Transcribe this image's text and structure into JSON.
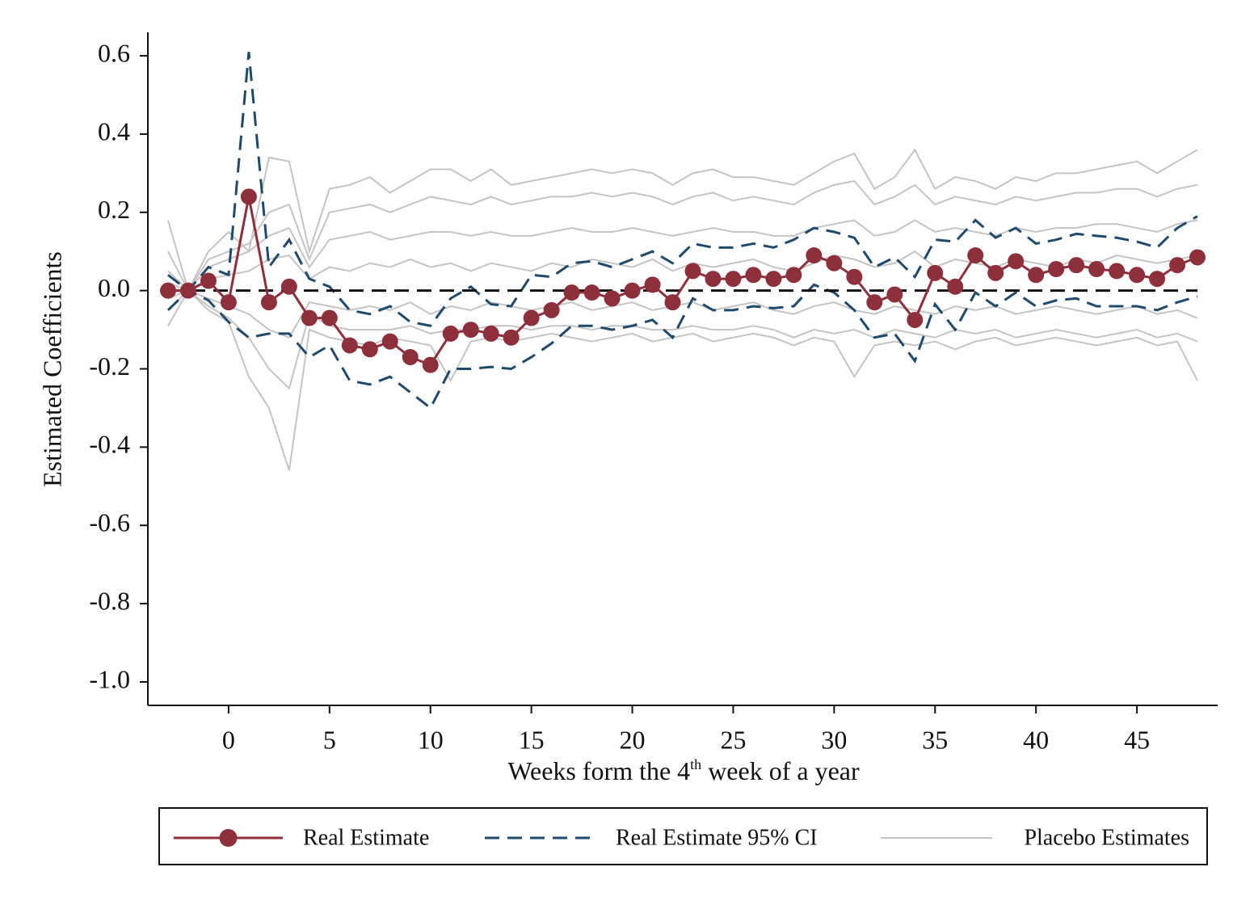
{
  "chart_data": {
    "type": "line",
    "ylabel": "Estimated Coefficients",
    "xlabel": [
      "Weeks form the 4",
      "th",
      " week of a year"
    ],
    "x": [
      -3,
      -2,
      -1,
      0,
      1,
      2,
      3,
      4,
      5,
      6,
      7,
      8,
      9,
      10,
      11,
      12,
      13,
      14,
      15,
      16,
      17,
      18,
      19,
      20,
      21,
      22,
      23,
      24,
      25,
      26,
      27,
      28,
      29,
      30,
      31,
      32,
      33,
      34,
      35,
      36,
      37,
      38,
      39,
      40,
      41,
      42,
      43,
      44,
      45,
      46,
      47,
      48
    ],
    "xlim": [
      -4,
      49
    ],
    "xticks": [
      0,
      5,
      10,
      15,
      20,
      25,
      30,
      35,
      40,
      45
    ],
    "ylim": [
      -1.06,
      0.66
    ],
    "yticks": [
      {
        "value": -1,
        "label": "-1.0"
      },
      -0.8,
      -0.6,
      -0.4,
      -0.2,
      {
        "value": 0,
        "label": "0.0"
      },
      0.2,
      0.4,
      0.6
    ],
    "reference_line": 0,
    "series": [
      {
        "name": "Real Estimate",
        "color": "#8e2f3c",
        "marker": true,
        "values": [
          0,
          0,
          0.025,
          -0.03,
          0.24,
          -0.03,
          0.01,
          -0.07,
          -0.07,
          -0.14,
          -0.15,
          -0.13,
          -0.17,
          -0.19,
          -0.11,
          -0.1,
          -0.11,
          -0.12,
          -0.07,
          -0.05,
          -0.005,
          -0.005,
          -0.02,
          0,
          0.015,
          -0.03,
          0.05,
          0.03,
          0.03,
          0.04,
          0.03,
          0.04,
          0.09,
          0.07,
          0.035,
          -0.03,
          -0.01,
          -0.075,
          0.045,
          0.01,
          0.09,
          0.045,
          0.075,
          0.04,
          0.055,
          0.065,
          0.055,
          0.05,
          0.04,
          0.03,
          0.065,
          0.085
        ]
      },
      {
        "name": "Real Estimate 95% CI",
        "color": "#1f4a6b",
        "dash": true,
        "upper": [
          0.04,
          0,
          0.06,
          0.04,
          0.61,
          0.06,
          0.13,
          0.03,
          0.01,
          -0.05,
          -0.06,
          -0.04,
          -0.08,
          -0.09,
          -0.02,
          0.01,
          -0.035,
          -0.04,
          0.04,
          0.035,
          0.07,
          0.075,
          0.06,
          0.08,
          0.1,
          0.07,
          0.12,
          0.11,
          0.11,
          0.12,
          0.11,
          0.13,
          0.16,
          0.15,
          0.135,
          0.06,
          0.085,
          0.035,
          0.13,
          0.125,
          0.18,
          0.135,
          0.16,
          0.12,
          0.13,
          0.145,
          0.14,
          0.135,
          0.125,
          0.11,
          0.16,
          0.19
        ],
        "lower": [
          -0.05,
          0,
          -0.025,
          -0.08,
          -0.12,
          -0.11,
          -0.11,
          -0.17,
          -0.14,
          -0.23,
          -0.24,
          -0.22,
          -0.26,
          -0.3,
          -0.2,
          -0.2,
          -0.195,
          -0.2,
          -0.17,
          -0.135,
          -0.09,
          -0.09,
          -0.1,
          -0.09,
          -0.075,
          -0.12,
          -0.02,
          -0.05,
          -0.05,
          -0.04,
          -0.045,
          -0.04,
          0.015,
          -0.005,
          -0.05,
          -0.12,
          -0.11,
          -0.18,
          -0.035,
          -0.1,
          -0.005,
          -0.04,
          -0.005,
          -0.04,
          -0.025,
          -0.02,
          -0.04,
          -0.04,
          -0.04,
          -0.05,
          -0.03,
          -0.015
        ]
      },
      {
        "name": "Placebo Estimates",
        "color": "#c4c4c4",
        "lines": [
          [
            0.18,
            0,
            0.1,
            0.15,
            0.1,
            0.34,
            0.33,
            0.1,
            0.26,
            0.27,
            0.29,
            0.25,
            0.28,
            0.31,
            0.31,
            0.28,
            0.31,
            0.27,
            0.28,
            0.29,
            0.3,
            0.31,
            0.3,
            0.31,
            0.3,
            0.27,
            0.3,
            0.31,
            0.29,
            0.29,
            0.28,
            0.27,
            0.3,
            0.33,
            0.35,
            0.26,
            0.29,
            0.36,
            0.26,
            0.29,
            0.28,
            0.26,
            0.29,
            0.28,
            0.3,
            0.3,
            0.31,
            0.32,
            0.33,
            0.3,
            0.33,
            0.36
          ],
          [
            0.1,
            0,
            0.08,
            0.1,
            0.12,
            0.2,
            0.22,
            0.08,
            0.2,
            0.21,
            0.22,
            0.2,
            0.22,
            0.24,
            0.23,
            0.22,
            0.24,
            0.22,
            0.23,
            0.24,
            0.24,
            0.25,
            0.24,
            0.25,
            0.24,
            0.22,
            0.24,
            0.25,
            0.23,
            0.24,
            0.23,
            0.22,
            0.25,
            0.27,
            0.28,
            0.22,
            0.24,
            0.27,
            0.22,
            0.24,
            0.23,
            0.22,
            0.24,
            0.23,
            0.24,
            0.25,
            0.25,
            0.26,
            0.26,
            0.24,
            0.26,
            0.27
          ],
          [
            0.05,
            0,
            0.06,
            0.08,
            0.1,
            0.14,
            0.16,
            0.06,
            0.13,
            0.14,
            0.15,
            0.13,
            0.14,
            0.15,
            0.15,
            0.14,
            0.15,
            0.14,
            0.14,
            0.15,
            0.16,
            0.15,
            0.15,
            0.16,
            0.15,
            0.14,
            0.15,
            0.16,
            0.15,
            0.15,
            0.14,
            0.14,
            0.16,
            0.17,
            0.18,
            0.14,
            0.15,
            0.18,
            0.15,
            0.16,
            0.15,
            0.14,
            0.16,
            0.15,
            0.16,
            0.16,
            0.17,
            0.17,
            0.16,
            0.15,
            0.17,
            0.18
          ],
          [
            0.02,
            0,
            0.03,
            0.04,
            0.05,
            0.08,
            0.09,
            0.03,
            0.06,
            0.05,
            0.07,
            0.06,
            0.08,
            0.06,
            0.07,
            0.05,
            0.07,
            0.06,
            0.05,
            0.07,
            0.06,
            0.08,
            0.07,
            0.06,
            0.08,
            0.05,
            0.07,
            0.06,
            0.07,
            0.08,
            0.06,
            0.05,
            0.07,
            0.09,
            0.08,
            0.06,
            0.07,
            0.1,
            0.06,
            0.08,
            0.07,
            0.06,
            0.08,
            0.07,
            0.06,
            0.08,
            0.07,
            0.09,
            0.08,
            0.07,
            0.08,
            0.09
          ],
          [
            -0.02,
            0,
            -0.02,
            -0.04,
            -0.06,
            -0.1,
            -0.12,
            -0.03,
            -0.04,
            -0.05,
            -0.04,
            -0.05,
            -0.03,
            -0.06,
            -0.04,
            -0.05,
            -0.03,
            -0.04,
            -0.05,
            -0.04,
            -0.03,
            -0.05,
            -0.04,
            -0.03,
            -0.05,
            -0.04,
            -0.03,
            -0.05,
            -0.04,
            -0.03,
            -0.05,
            -0.06,
            -0.04,
            -0.03,
            -0.05,
            -0.06,
            -0.04,
            -0.05,
            -0.06,
            -0.04,
            -0.05,
            -0.04,
            -0.06,
            -0.05,
            -0.04,
            -0.05,
            -0.06,
            -0.05,
            -0.04,
            -0.06,
            -0.05,
            -0.07
          ],
          [
            -0.05,
            0,
            -0.04,
            -0.07,
            -0.12,
            -0.2,
            -0.25,
            -0.06,
            -0.09,
            -0.1,
            -0.1,
            -0.1,
            -0.09,
            -0.11,
            -0.1,
            -0.1,
            -0.09,
            -0.09,
            -0.1,
            -0.09,
            -0.09,
            -0.1,
            -0.09,
            -0.09,
            -0.1,
            -0.1,
            -0.09,
            -0.1,
            -0.1,
            -0.09,
            -0.1,
            -0.12,
            -0.1,
            -0.11,
            -0.1,
            -0.12,
            -0.1,
            -0.11,
            -0.12,
            -0.1,
            -0.11,
            -0.1,
            -0.12,
            -0.11,
            -0.1,
            -0.11,
            -0.12,
            -0.11,
            -0.1,
            -0.12,
            -0.11,
            -0.13
          ],
          [
            -0.09,
            0,
            -0.05,
            -0.08,
            -0.22,
            -0.3,
            -0.46,
            -0.1,
            -0.12,
            -0.13,
            -0.14,
            -0.12,
            -0.13,
            -0.14,
            -0.23,
            -0.13,
            -0.12,
            -0.13,
            -0.12,
            -0.11,
            -0.12,
            -0.13,
            -0.12,
            -0.11,
            -0.13,
            -0.12,
            -0.11,
            -0.13,
            -0.12,
            -0.11,
            -0.12,
            -0.14,
            -0.12,
            -0.13,
            -0.22,
            -0.14,
            -0.13,
            -0.14,
            -0.13,
            -0.15,
            -0.13,
            -0.12,
            -0.14,
            -0.13,
            -0.12,
            -0.13,
            -0.14,
            -0.13,
            -0.12,
            -0.14,
            -0.13,
            -0.23
          ]
        ]
      }
    ]
  }
}
